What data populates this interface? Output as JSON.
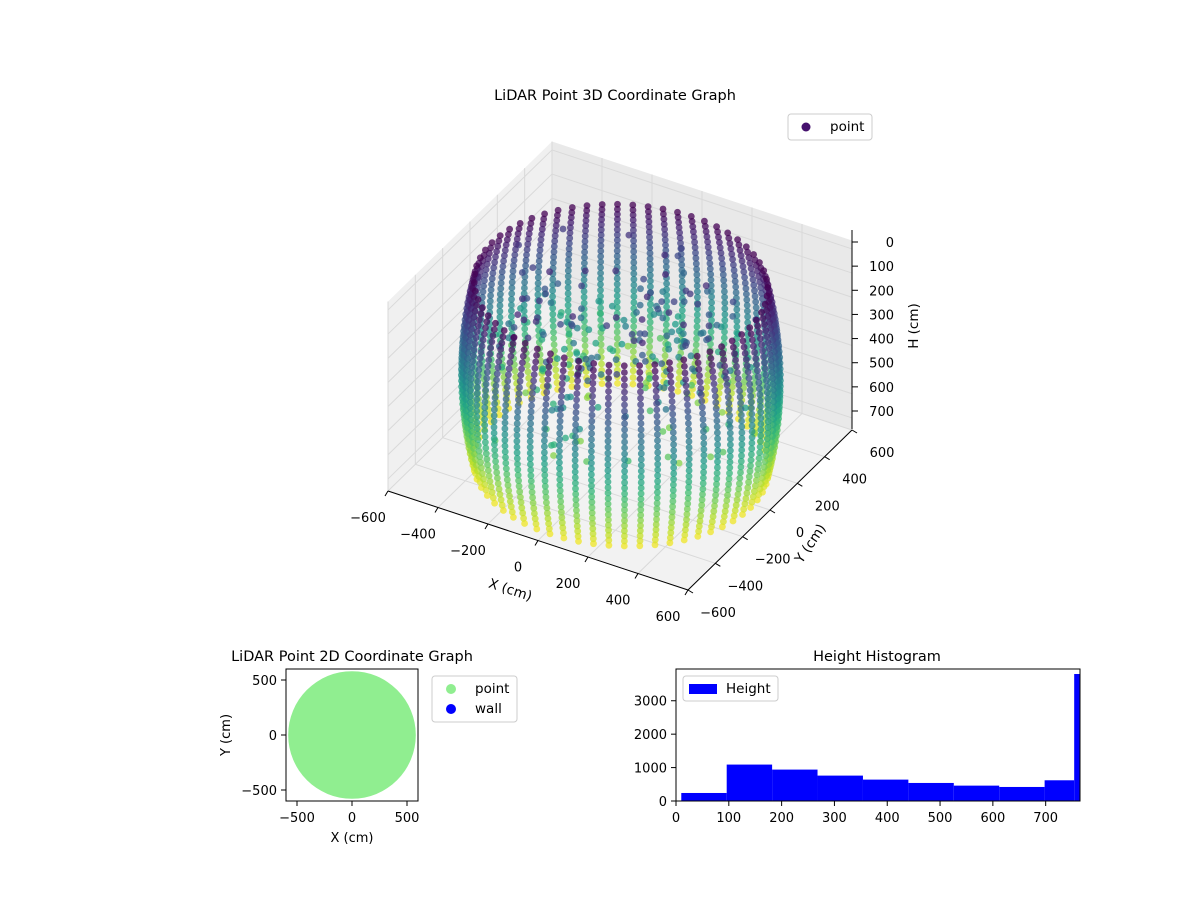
{
  "figure": {
    "background": "#ffffff"
  },
  "chart_data": [
    {
      "type": "scatter",
      "projection": "3d",
      "title": "LiDAR Point 3D Coordinate Graph",
      "xlabel": "X (cm)",
      "ylabel": "Y (cm)",
      "zlabel": "H (cm)",
      "xlim": [
        -600,
        600
      ],
      "ylim": [
        -600,
        600
      ],
      "zlim": [
        0,
        750
      ],
      "z_inverted": true,
      "xticks": [
        "−600",
        "−400",
        "−200",
        "0",
        "200",
        "400",
        "600"
      ],
      "yticks": [
        "−600",
        "−400",
        "−200",
        "0",
        "200",
        "400",
        "600"
      ],
      "zticks": [
        "0",
        "100",
        "200",
        "300",
        "400",
        "500",
        "600",
        "700"
      ],
      "grid": true,
      "legend": {
        "position": "top-right",
        "entries": [
          {
            "label": "point",
            "color": "#46126e"
          }
        ]
      },
      "colormap": "viridis",
      "color_by": "height",
      "shape": "cylindrical wall",
      "radius_cm": 560,
      "height_range": [
        0,
        760
      ],
      "wall_columns": 60,
      "interior_points": "sparse, upper height range"
    },
    {
      "type": "scatter",
      "title": "LiDAR Point 2D Coordinate Graph",
      "xlabel": "X (cm)",
      "ylabel": "Y (cm)",
      "xlim": [
        -600,
        600
      ],
      "ylim": [
        -600,
        600
      ],
      "xticks": [
        "−500",
        "0",
        "500"
      ],
      "yticks": [
        "−500",
        "0",
        "500"
      ],
      "shape": "filled disc",
      "radius_cm": 580,
      "legend": {
        "position": "outside-right",
        "entries": [
          {
            "label": "point",
            "color": "#90ee90"
          },
          {
            "label": "wall",
            "color": "#0000ff"
          }
        ]
      }
    },
    {
      "type": "bar",
      "subtype": "histogram",
      "title": "Height Histogram",
      "xlabel": "",
      "ylabel": "",
      "xlim": [
        0,
        765
      ],
      "ylim": [
        0,
        3950
      ],
      "xticks": [
        "0",
        "100",
        "200",
        "300",
        "400",
        "500",
        "600",
        "700"
      ],
      "yticks": [
        "0",
        "1000",
        "2000",
        "3000"
      ],
      "bin_edges": [
        10,
        96,
        182,
        268,
        354,
        440,
        526,
        612,
        698,
        754,
        765
      ],
      "values": [
        240,
        1090,
        940,
        760,
        640,
        540,
        460,
        420,
        620,
        3800
      ],
      "color": "#0000ff",
      "legend": {
        "position": "top-left",
        "entries": [
          {
            "label": "Height",
            "color": "#0000ff"
          }
        ]
      }
    }
  ]
}
